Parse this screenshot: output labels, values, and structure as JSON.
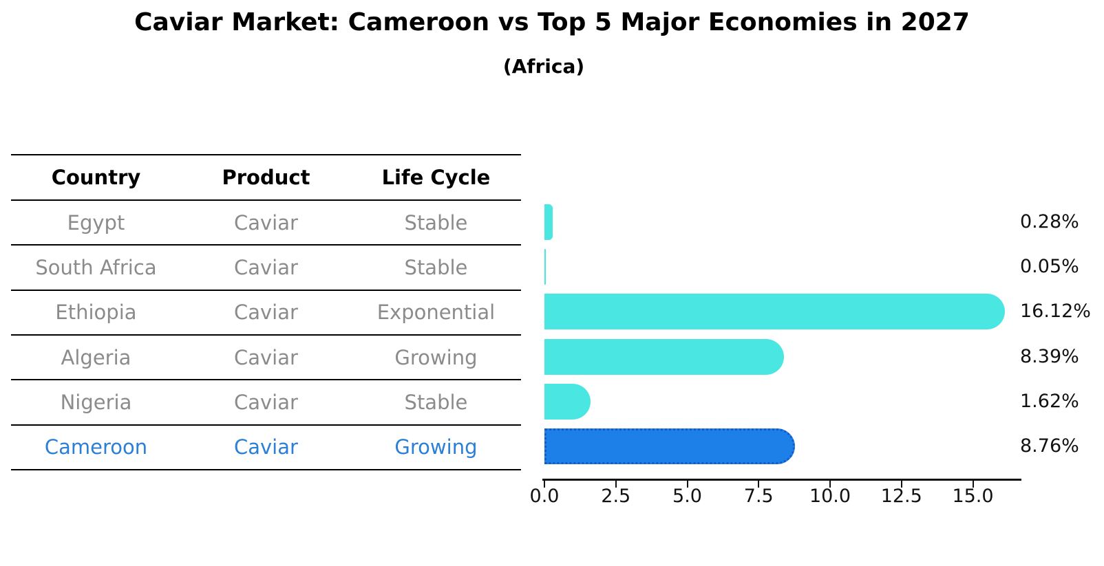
{
  "title": "Caviar Market: Cameroon vs Top 5 Major Economies in 2027",
  "subtitle": "(Africa)",
  "table": {
    "headers": [
      "Country",
      "Product",
      "Life Cycle"
    ],
    "rows": [
      {
        "country": "Egypt",
        "product": "Caviar",
        "life_cycle": "Stable"
      },
      {
        "country": "South Africa",
        "product": "Caviar",
        "life_cycle": "Stable"
      },
      {
        "country": "Ethiopia",
        "product": "Caviar",
        "life_cycle": "Exponential"
      },
      {
        "country": "Algeria",
        "product": "Caviar",
        "life_cycle": "Growing"
      },
      {
        "country": "Nigeria",
        "product": "Caviar",
        "life_cycle": "Stable"
      },
      {
        "country": "Cameroon",
        "product": "Caviar",
        "life_cycle": "Growing"
      }
    ],
    "highlight_row": "Cameroon"
  },
  "chart_data": {
    "type": "bar",
    "orientation": "horizontal",
    "title": "Caviar Market: Cameroon vs Top 5 Major Economies in 2027",
    "subtitle": "(Africa)",
    "categories": [
      "Egypt",
      "South Africa",
      "Ethiopia",
      "Algeria",
      "Nigeria",
      "Cameroon"
    ],
    "values": [
      0.28,
      0.05,
      16.12,
      8.39,
      1.62,
      8.76
    ],
    "value_labels": [
      "0.28%",
      "0.05%",
      "16.12%",
      "8.39%",
      "1.62%",
      "8.76%"
    ],
    "x_ticks": [
      "0.0",
      "2.5",
      "5.0",
      "7.5",
      "10.0",
      "12.5",
      "15.0"
    ],
    "xlim": [
      0,
      16.7
    ],
    "grid": false,
    "legend": false,
    "highlight_index": 5
  },
  "colors": {
    "bar": "#4ae6e1",
    "highlight_bar": "#1d7fe8",
    "highlight_border": "#155ac6",
    "highlight_text": "#2b7fd4",
    "table_text": "#8b8b8b",
    "header_text": "#000000",
    "axis": "#111111"
  }
}
